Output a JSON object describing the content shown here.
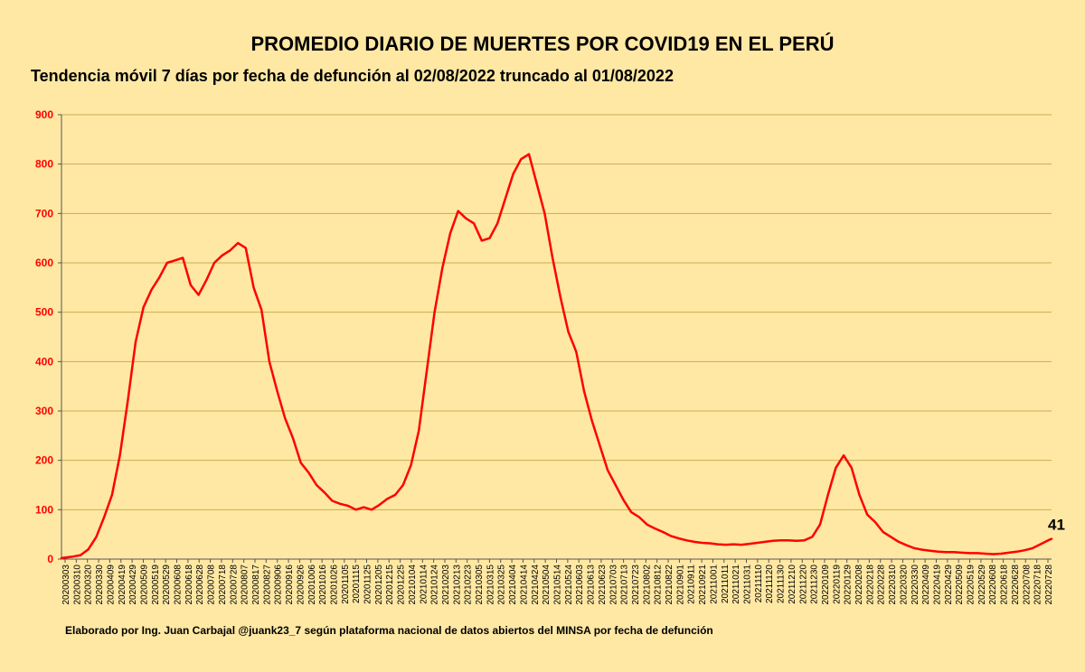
{
  "header": {
    "title": "PROMEDIO DIARIO DE MUERTES POR COVID19 EN EL PERÚ",
    "subtitle": "Tendencia móvil 7 días por fecha de defunción al 02/08/2022 truncado al 01/08/2022"
  },
  "footer": {
    "credit": "Elaborado por Ing. Juan Carbajal @juank23_7 según plataforma nacional de datos abiertos del MINSA por fecha de defunción"
  },
  "colors": {
    "background": "#FFE8A3",
    "line": "#FF0000",
    "grid": "#C9AE52",
    "axis_text": "#FF0000"
  },
  "chart_data": {
    "type": "line",
    "title": "PROMEDIO DIARIO DE MUERTES POR COVID19 EN EL PERÚ",
    "subtitle": "Tendencia móvil 7 días por fecha de defunción al 02/08/2022 truncado al 01/08/2022",
    "xlabel": "",
    "ylabel": "",
    "ylim": [
      0,
      900
    ],
    "yticks": [
      0,
      100,
      200,
      300,
      400,
      500,
      600,
      700,
      800,
      900
    ],
    "x_start": "20200303",
    "x_end": "20220801",
    "xtick_labels": [
      "20200303",
      "20200310",
      "20200320",
      "20200330",
      "20200409",
      "20200419",
      "20200429",
      "20200509",
      "20200519",
      "20200529",
      "20200608",
      "20200618",
      "20200628",
      "20200708",
      "20200718",
      "20200728",
      "20200807",
      "20200817",
      "20200827",
      "20200906",
      "20200916",
      "20200926",
      "20201006",
      "20201016",
      "20201026",
      "20201105",
      "20201115",
      "20201125",
      "20201205",
      "20201215",
      "20201225",
      "20210104",
      "20210114",
      "20210124",
      "20210203",
      "20210213",
      "20210223",
      "20210305",
      "20210315",
      "20210325",
      "20210404",
      "20210414",
      "20210424",
      "20210504",
      "20210514",
      "20210524",
      "20210603",
      "20210613",
      "20210623",
      "20210703",
      "20210713",
      "20210723",
      "20210802",
      "20210812",
      "20210822",
      "20210901",
      "20210911",
      "20210921",
      "20211001",
      "20211011",
      "20211021",
      "20211031",
      "20211110",
      "20211120",
      "20211130",
      "20211210",
      "20211220",
      "20211230",
      "20220109",
      "20220119",
      "20220129",
      "20220208",
      "20220218",
      "20220228",
      "20220310",
      "20220320",
      "20220330",
      "20220409",
      "20220419",
      "20220429",
      "20220509",
      "20220519",
      "20220529",
      "20220608",
      "20220618",
      "20220628",
      "20220708",
      "20220718",
      "20220728"
    ],
    "grid": true,
    "legend": "none",
    "last_value_label": "41",
    "series": [
      {
        "values": [
          [
            "20200303",
            2
          ],
          [
            "20200313",
            5
          ],
          [
            "20200320",
            8
          ],
          [
            "20200327",
            20
          ],
          [
            "20200403",
            45
          ],
          [
            "20200410",
            85
          ],
          [
            "20200417",
            130
          ],
          [
            "20200424",
            210
          ],
          [
            "20200501",
            320
          ],
          [
            "20200508",
            440
          ],
          [
            "20200515",
            510
          ],
          [
            "20200522",
            545
          ],
          [
            "20200529",
            570
          ],
          [
            "20200605",
            600
          ],
          [
            "20200612",
            605
          ],
          [
            "20200619",
            610
          ],
          [
            "20200626",
            555
          ],
          [
            "20200703",
            535
          ],
          [
            "20200710",
            565
          ],
          [
            "20200717",
            600
          ],
          [
            "20200724",
            615
          ],
          [
            "20200731",
            625
          ],
          [
            "20200807",
            640
          ],
          [
            "20200814",
            630
          ],
          [
            "20200821",
            550
          ],
          [
            "20200828",
            505
          ],
          [
            "20200904",
            400
          ],
          [
            "20200911",
            340
          ],
          [
            "20200918",
            285
          ],
          [
            "20200925",
            245
          ],
          [
            "20201002",
            195
          ],
          [
            "20201009",
            175
          ],
          [
            "20201016",
            150
          ],
          [
            "20201023",
            135
          ],
          [
            "20201030",
            118
          ],
          [
            "20201106",
            112
          ],
          [
            "20201113",
            108
          ],
          [
            "20201120",
            100
          ],
          [
            "20201127",
            105
          ],
          [
            "20201204",
            100
          ],
          [
            "20201211",
            110
          ],
          [
            "20201218",
            122
          ],
          [
            "20201225",
            130
          ],
          [
            "20210101",
            150
          ],
          [
            "20210108",
            190
          ],
          [
            "20210115",
            260
          ],
          [
            "20210122",
            380
          ],
          [
            "20210129",
            500
          ],
          [
            "20210205",
            590
          ],
          [
            "20210212",
            660
          ],
          [
            "20210219",
            705
          ],
          [
            "20210226",
            690
          ],
          [
            "20210305",
            680
          ],
          [
            "20210312",
            645
          ],
          [
            "20210319",
            650
          ],
          [
            "20210326",
            680
          ],
          [
            "20210402",
            730
          ],
          [
            "20210409",
            780
          ],
          [
            "20210416",
            810
          ],
          [
            "20210423",
            820
          ],
          [
            "20210430",
            760
          ],
          [
            "20210507",
            700
          ],
          [
            "20210514",
            610
          ],
          [
            "20210521",
            530
          ],
          [
            "20210528",
            460
          ],
          [
            "20210604",
            420
          ],
          [
            "20210611",
            340
          ],
          [
            "20210618",
            280
          ],
          [
            "20210625",
            230
          ],
          [
            "20210702",
            180
          ],
          [
            "20210709",
            150
          ],
          [
            "20210716",
            120
          ],
          [
            "20210723",
            95
          ],
          [
            "20210730",
            85
          ],
          [
            "20210806",
            70
          ],
          [
            "20210813",
            62
          ],
          [
            "20210820",
            55
          ],
          [
            "20210827",
            47
          ],
          [
            "20210903",
            42
          ],
          [
            "20210910",
            38
          ],
          [
            "20210917",
            35
          ],
          [
            "20210924",
            33
          ],
          [
            "20211001",
            32
          ],
          [
            "20211008",
            30
          ],
          [
            "20211015",
            29
          ],
          [
            "20211022",
            30
          ],
          [
            "20211029",
            29
          ],
          [
            "20211105",
            31
          ],
          [
            "20211112",
            33
          ],
          [
            "20211119",
            35
          ],
          [
            "20211126",
            37
          ],
          [
            "20211203",
            38
          ],
          [
            "20211210",
            38
          ],
          [
            "20211217",
            37
          ],
          [
            "20211224",
            38
          ],
          [
            "20211231",
            45
          ],
          [
            "20220107",
            70
          ],
          [
            "20220114",
            130
          ],
          [
            "20220121",
            185
          ],
          [
            "20220128",
            210
          ],
          [
            "20220204",
            185
          ],
          [
            "20220211",
            130
          ],
          [
            "20220218",
            90
          ],
          [
            "20220225",
            75
          ],
          [
            "20220304",
            55
          ],
          [
            "20220311",
            45
          ],
          [
            "20220318",
            35
          ],
          [
            "20220325",
            28
          ],
          [
            "20220401",
            22
          ],
          [
            "20220408",
            19
          ],
          [
            "20220415",
            17
          ],
          [
            "20220422",
            15
          ],
          [
            "20220429",
            14
          ],
          [
            "20220506",
            14
          ],
          [
            "20220513",
            13
          ],
          [
            "20220520",
            12
          ],
          [
            "20220527",
            12
          ],
          [
            "20220603",
            11
          ],
          [
            "20220610",
            10
          ],
          [
            "20220617",
            11
          ],
          [
            "20220624",
            13
          ],
          [
            "20220701",
            15
          ],
          [
            "20220708",
            18
          ],
          [
            "20220715",
            22
          ],
          [
            "20220722",
            30
          ],
          [
            "20220729",
            38
          ],
          [
            "20220801",
            41
          ]
        ]
      }
    ]
  }
}
